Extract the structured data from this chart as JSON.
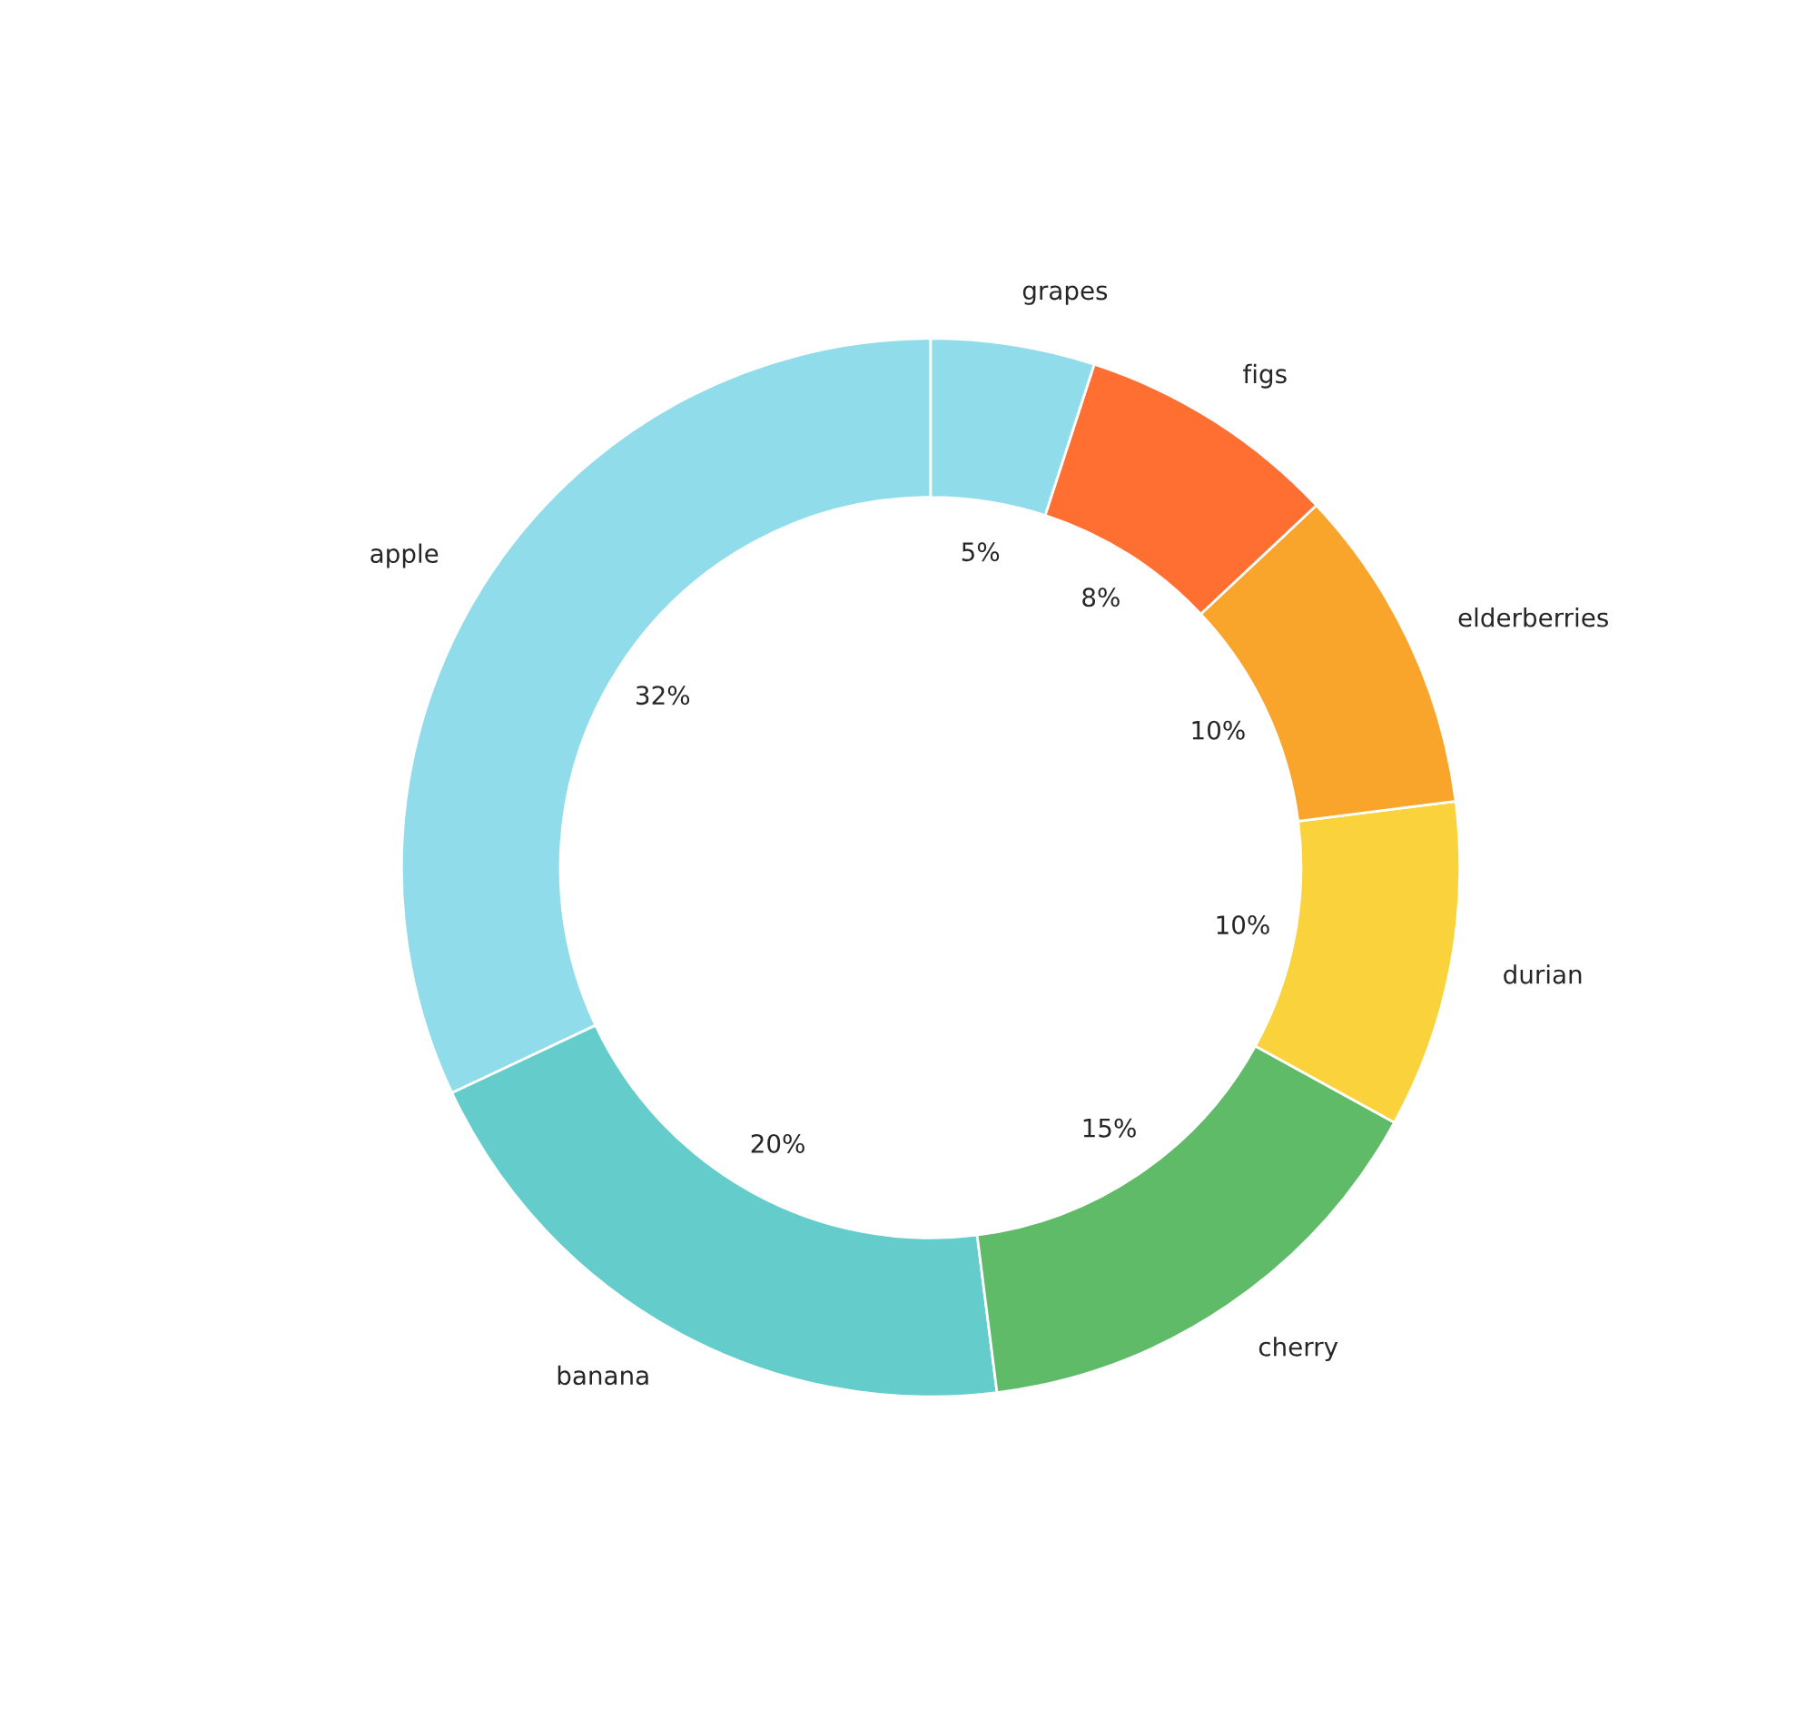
{
  "chart_data": {
    "type": "donut",
    "categories": [
      "apple",
      "banana",
      "cherry",
      "durian",
      "elderberries",
      "figs",
      "grapes"
    ],
    "values": [
      32,
      20,
      15,
      10,
      10,
      8,
      5
    ],
    "value_labels": [
      "32%",
      "20%",
      "15%",
      "10%",
      "10%",
      "8%",
      "5%"
    ],
    "colors": [
      "#90dcea",
      "#64cdcb",
      "#5fbb68",
      "#f9d23c",
      "#f9a52c",
      "#ff6f31",
      "#90dcea"
    ]
  }
}
